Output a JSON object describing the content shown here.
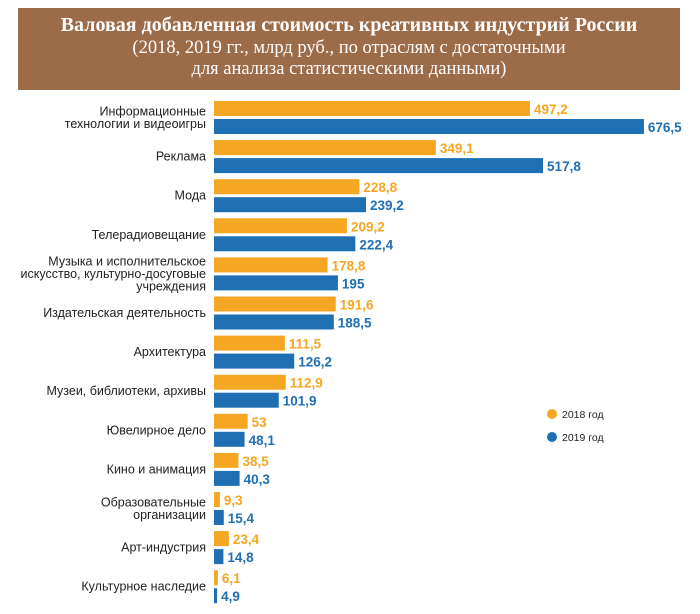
{
  "chart_data": {
    "type": "bar",
    "orientation": "horizontal",
    "title": "Валовая добавленная стоимость креативных индустрий России",
    "subtitle": "(2018, 2019 гг., млрд руб., по отраслям с достаточными для анализа статистическими данными)",
    "subtitle_lines": [
      "(2018, 2019 гг., млрд руб., по отраслям с достаточными",
      "для анализа статистическими данными)"
    ],
    "categories": [
      {
        "lines": [
          "Информационные",
          "технологии и видеоигры"
        ]
      },
      {
        "lines": [
          "Реклама"
        ]
      },
      {
        "lines": [
          "Мода"
        ]
      },
      {
        "lines": [
          "Телерадиовещание"
        ]
      },
      {
        "lines": [
          "Музыка и исполнительское",
          "искусство, культурно-досуговые",
          "учреждения"
        ]
      },
      {
        "lines": [
          "Издательская деятельность"
        ]
      },
      {
        "lines": [
          "Архитектура"
        ]
      },
      {
        "lines": [
          "Музеи, библиотеки, архивы"
        ]
      },
      {
        "lines": [
          "Ювелирное дело"
        ]
      },
      {
        "lines": [
          "Кино и анимация"
        ]
      },
      {
        "lines": [
          "Образовательные",
          "организации"
        ]
      },
      {
        "lines": [
          "Арт-индустрия"
        ]
      },
      {
        "lines": [
          "Культурное наследие"
        ]
      }
    ],
    "series": [
      {
        "name": "2018 год",
        "color": "#f5a623",
        "values": [
          497.2,
          349.1,
          228.8,
          209.2,
          178.8,
          191.6,
          111.5,
          112.9,
          53,
          38.5,
          9.3,
          23.4,
          6.1
        ],
        "labels": [
          "497,2",
          "349,1",
          "228,8",
          "209,2",
          "178,8",
          "191,6",
          "111,5",
          "112,9",
          "53",
          "38,5",
          "9,3",
          "23,4",
          "6,1"
        ]
      },
      {
        "name": "2019 год",
        "color": "#1f6fb4",
        "values": [
          676.5,
          517.8,
          239.2,
          222.4,
          195,
          188.5,
          126.2,
          101.9,
          48.1,
          40.3,
          15.4,
          14.8,
          4.9
        ],
        "labels": [
          "676,5",
          "517,8",
          "239,2",
          "222,4",
          "195",
          "188,5",
          "126,2",
          "101,9",
          "48,1",
          "40,3",
          "15,4",
          "14,8",
          "4,9"
        ]
      }
    ],
    "legend_position": "right",
    "grid": false
  }
}
